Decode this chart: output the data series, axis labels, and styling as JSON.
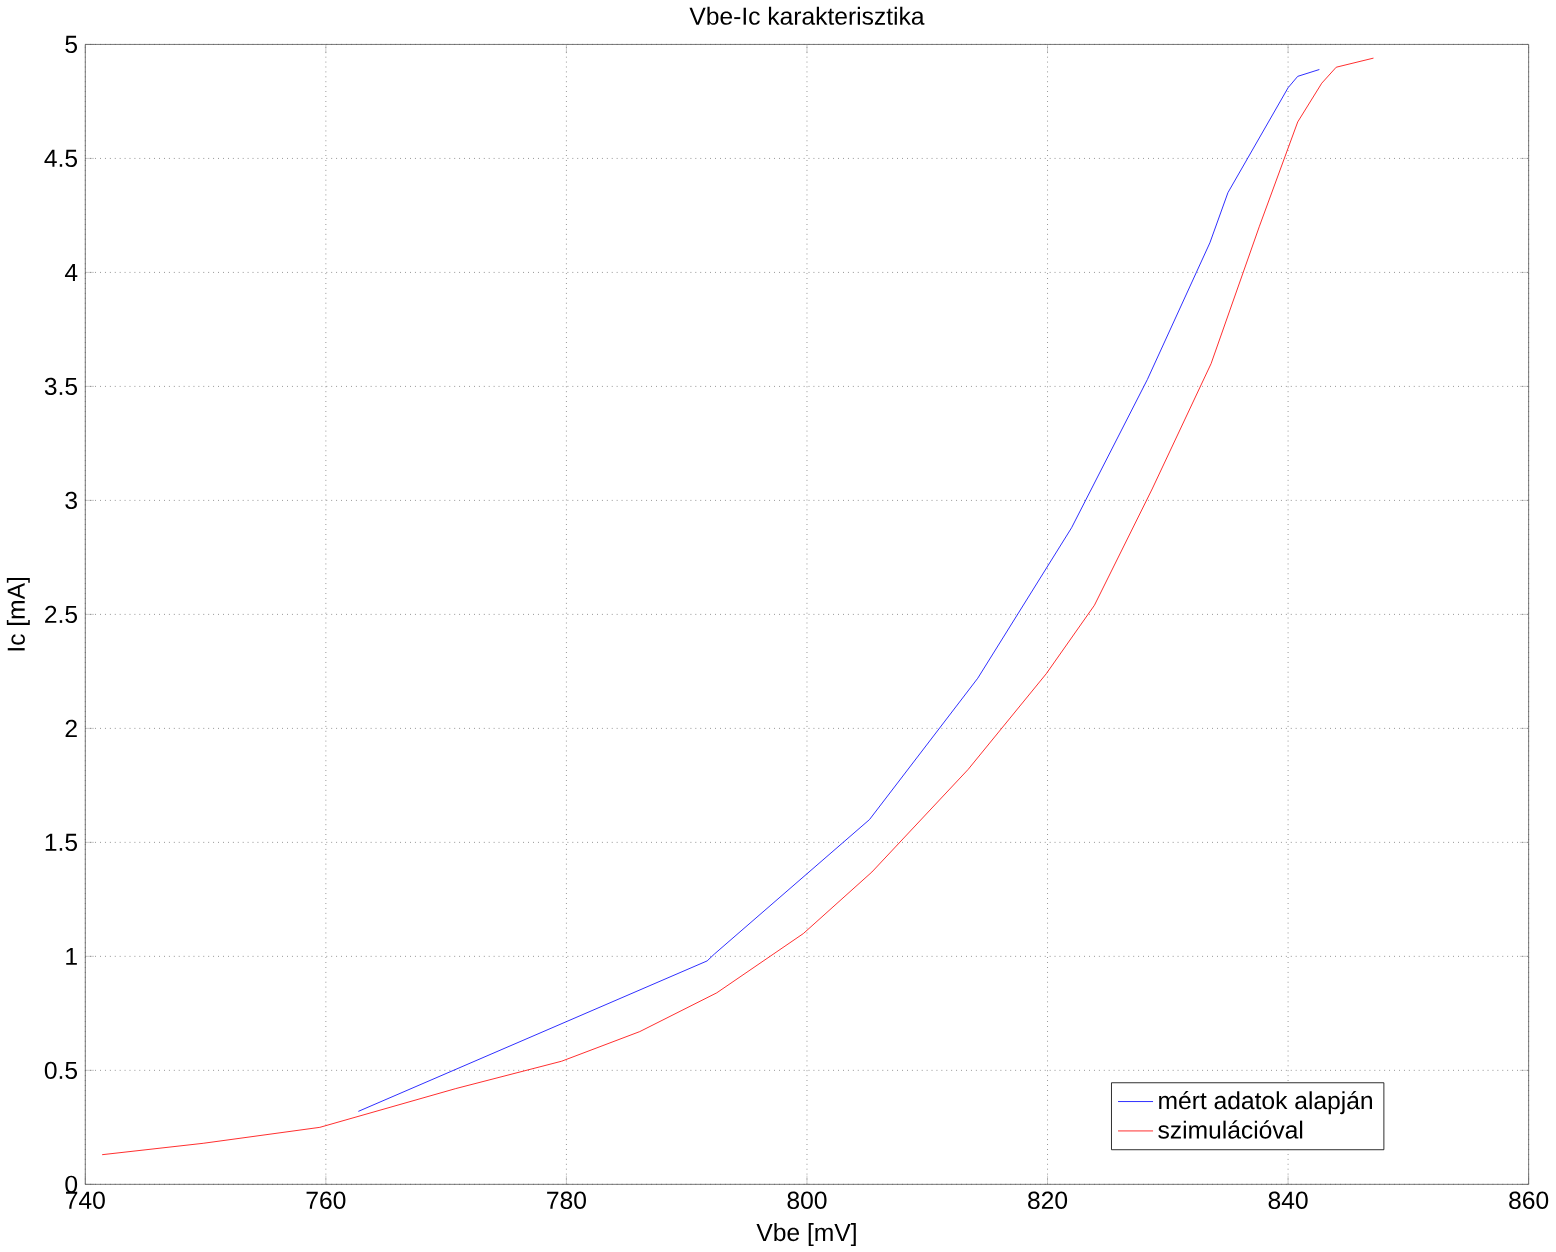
{
  "chart_data": {
    "type": "line",
    "title": "Vbe-Ic karakterisztika",
    "xlabel": "Vbe [mV]",
    "ylabel": "Ic [mA]",
    "xlim": [
      740,
      860
    ],
    "ylim": [
      0,
      5
    ],
    "xticks": [
      740,
      760,
      780,
      800,
      820,
      840,
      860
    ],
    "yticks": [
      0,
      0.5,
      1,
      1.5,
      2,
      2.5,
      3,
      3.5,
      4,
      4.5,
      5
    ],
    "grid": true,
    "legend": "bottom right",
    "marker": "none",
    "line_style": "solid",
    "series": [
      {
        "name": "mért adatok alapján",
        "color": "#0000ff",
        "x": [
          762.7,
          791.7,
          792.3,
          805.2,
          814.2,
          822.0,
          828.3,
          833.5,
          835.0,
          840.0,
          840.8,
          842.6
        ],
        "values": [
          0.32,
          0.98,
          1.01,
          1.6,
          2.22,
          2.88,
          3.53,
          4.13,
          4.35,
          4.81,
          4.86,
          4.89
        ]
      },
      {
        "name": "szimulációval",
        "color": "#ff0000",
        "x": [
          741.4,
          749.8,
          759.5,
          770.8,
          779.6,
          786.1,
          792.5,
          799.7,
          805.4,
          813.4,
          819.9,
          823.9,
          828.7,
          833.6,
          837.6,
          840.8,
          842.8,
          844.0,
          847.1
        ],
        "values": [
          0.13,
          0.18,
          0.25,
          0.42,
          0.54,
          0.67,
          0.84,
          1.1,
          1.37,
          1.82,
          2.24,
          2.54,
          3.05,
          3.6,
          4.2,
          4.66,
          4.83,
          4.9,
          4.94
        ]
      }
    ]
  }
}
